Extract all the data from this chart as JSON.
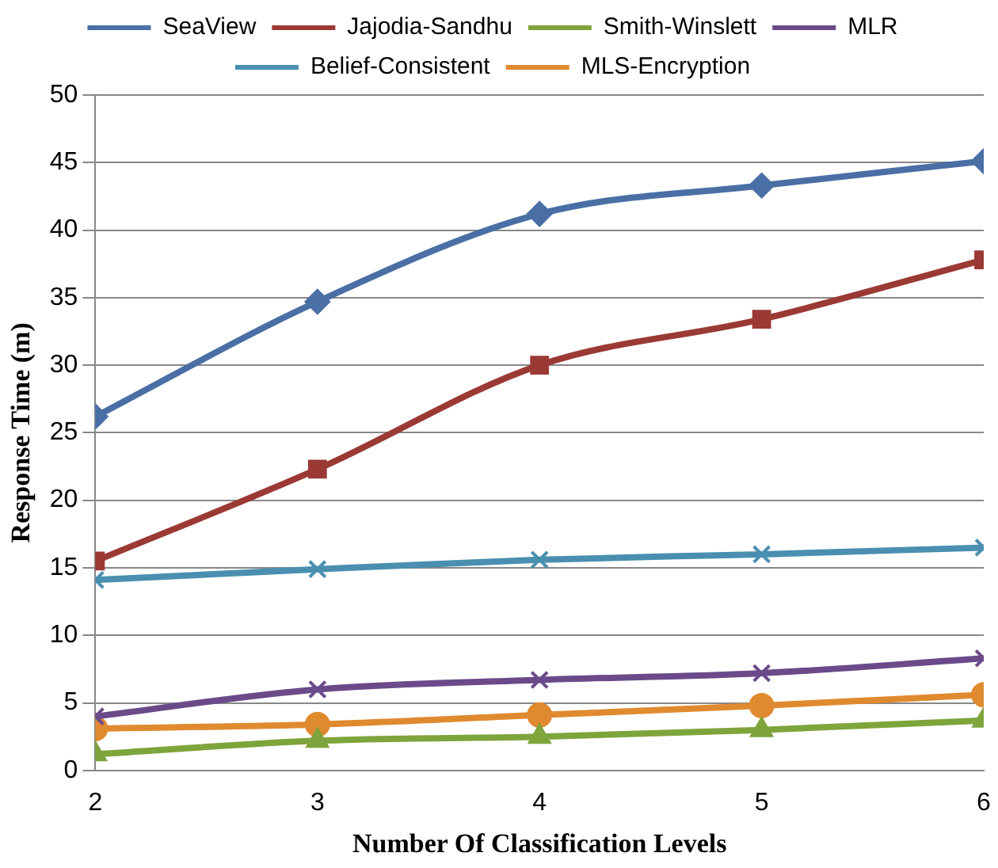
{
  "chart_data": {
    "type": "line",
    "xlabel": "Number Of Classification Levels",
    "ylabel": "Response Time (m)",
    "x": [
      2,
      3,
      4,
      5,
      6
    ],
    "xlim": [
      2,
      6
    ],
    "xticks": [
      2,
      3,
      4,
      5,
      6
    ],
    "ylim": [
      0,
      50
    ],
    "yticks": [
      0,
      5,
      10,
      15,
      20,
      25,
      30,
      35,
      40,
      45,
      50
    ],
    "grid": "y",
    "legend": "top",
    "series": [
      {
        "name": "SeaView",
        "color": "#4a6fa5",
        "marker": "diamond",
        "values": [
          26.2,
          34.7,
          41.2,
          43.3,
          45.1
        ]
      },
      {
        "name": "Jajodia-Sandhu",
        "color": "#9b3a35",
        "marker": "square",
        "values": [
          15.5,
          22.3,
          30.0,
          33.4,
          37.8
        ]
      },
      {
        "name": "Smith-Winslett",
        "color": "#7ea43c",
        "marker": "triangle",
        "values": [
          1.2,
          2.2,
          2.5,
          3.0,
          3.7
        ]
      },
      {
        "name": "MLR",
        "color": "#6b4a8a",
        "marker": "cross",
        "values": [
          4.0,
          6.0,
          6.7,
          7.2,
          8.3
        ]
      },
      {
        "name": "Belief-Consistent",
        "color": "#4a8fb0",
        "marker": "cross",
        "values": [
          14.1,
          14.9,
          15.6,
          16.0,
          16.5
        ]
      },
      {
        "name": "MLS-Encryption",
        "color": "#e08a30",
        "marker": "circle",
        "values": [
          3.1,
          3.4,
          4.1,
          4.8,
          5.6
        ]
      }
    ]
  }
}
